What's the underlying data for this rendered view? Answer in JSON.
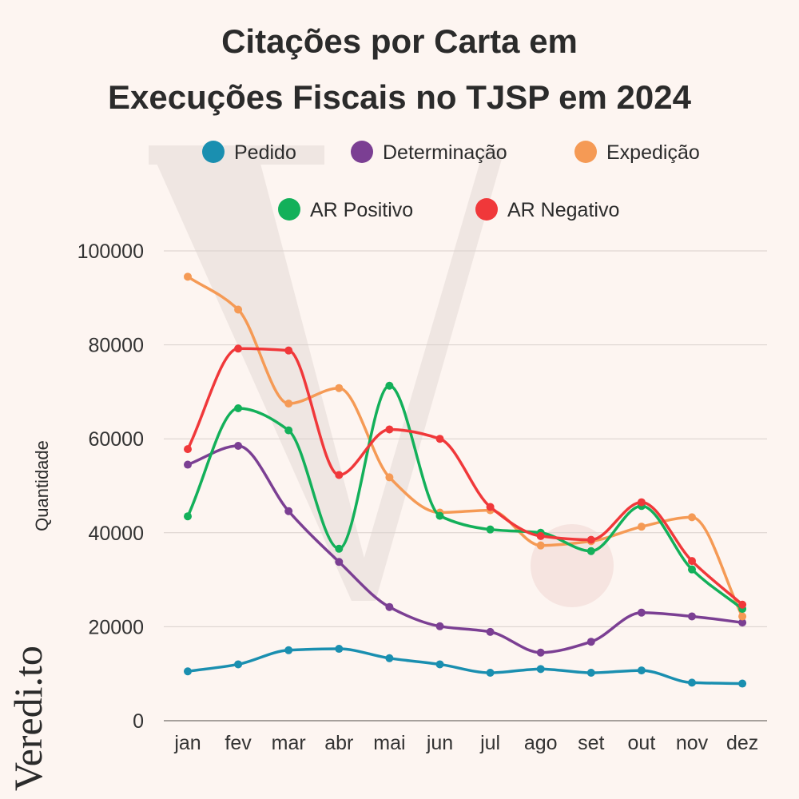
{
  "brand": {
    "name": "Veredi.to"
  },
  "colors": {
    "background": "#fdf5f1",
    "watermark": "#efe6e2",
    "grid": "#d9d0cc",
    "text": "#2b2b2b"
  },
  "chart_data": {
    "type": "line",
    "title": [
      "Citações por Carta em",
      "Execuções Fiscais no TJSP em 2024"
    ],
    "xlabel": "",
    "ylabel": "Quantidade",
    "categories": [
      "jan",
      "fev",
      "mar",
      "abr",
      "mai",
      "jun",
      "jul",
      "ago",
      "set",
      "out",
      "nov",
      "dez"
    ],
    "ylim": [
      0,
      110000
    ],
    "yticks": [
      0,
      20000,
      40000,
      60000,
      80000,
      100000
    ],
    "grid": true,
    "legend": "top",
    "series": [
      {
        "name": "Pedido",
        "color": "#1a8fb0",
        "values": [
          10500,
          12000,
          15000,
          15300,
          13300,
          12000,
          10200,
          11000,
          10200,
          10700,
          8100,
          7900
        ]
      },
      {
        "name": "Determinação",
        "color": "#7b3f93",
        "values": [
          54500,
          58500,
          44600,
          33800,
          24200,
          20100,
          18900,
          14500,
          16800,
          23000,
          22200,
          20900
        ]
      },
      {
        "name": "Expedição",
        "color": "#f59a55",
        "values": [
          94500,
          87500,
          67500,
          70800,
          51800,
          44300,
          44800,
          37300,
          38200,
          41300,
          43300,
          22200
        ]
      },
      {
        "name": "AR Positivo",
        "color": "#13b05a",
        "values": [
          43500,
          66500,
          61800,
          36600,
          71300,
          43600,
          40700,
          40000,
          36100,
          45700,
          32200,
          23800
        ]
      },
      {
        "name": "AR Negativo",
        "color": "#f0383a",
        "values": [
          57800,
          79200,
          78800,
          52300,
          62000,
          60000,
          45500,
          39300,
          38500,
          46500,
          34000,
          24700
        ]
      }
    ]
  }
}
